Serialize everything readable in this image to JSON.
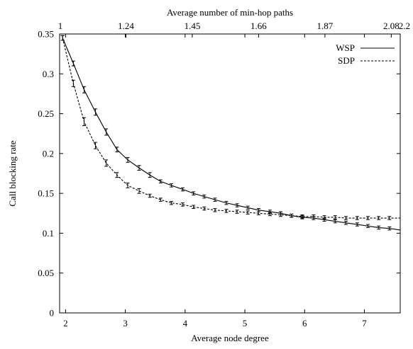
{
  "chart_data": {
    "type": "line",
    "title": "",
    "xlabel": "Average node degree",
    "ylabel": "Call blocking rate",
    "x2label": "Average number of min-hop paths",
    "xlim": [
      1.9,
      7.6
    ],
    "ylim": [
      0,
      0.35
    ],
    "xticks": [
      2,
      3,
      4,
      5,
      6,
      7
    ],
    "xtick_labels": [
      "2",
      "3",
      "4",
      "5",
      "6",
      "7"
    ],
    "yticks": [
      0,
      0.05,
      0.1,
      0.15,
      0.2,
      0.25,
      0.3,
      0.35
    ],
    "ytick_labels": [
      "0",
      "0.05",
      "0.1",
      "0.15",
      "0.2",
      "0.25",
      "0.3",
      "0.35"
    ],
    "x2ticks": [
      1.9,
      3.01,
      4.12,
      5.23,
      6.34,
      7.45,
      7.6
    ],
    "x2tick_labels": [
      "1",
      "1.24",
      "1.45",
      "1.66",
      "1.87",
      "2.08",
      "2.2"
    ],
    "grid": false,
    "legend_position": "top-right",
    "series": [
      {
        "name": "WSP",
        "style": "solid",
        "x": [
          1.95,
          2.13,
          2.31,
          2.5,
          2.68,
          2.86,
          3.04,
          3.23,
          3.41,
          3.59,
          3.77,
          3.96,
          4.14,
          4.32,
          4.5,
          4.69,
          4.87,
          5.05,
          5.23,
          5.42,
          5.6,
          5.78,
          5.96,
          6.15,
          6.33,
          6.51,
          6.69,
          6.88,
          7.06,
          7.24,
          7.42,
          7.6
        ],
        "y": [
          0.345,
          0.313,
          0.28,
          0.252,
          0.227,
          0.205,
          0.192,
          0.182,
          0.173,
          0.165,
          0.16,
          0.155,
          0.15,
          0.146,
          0.142,
          0.138,
          0.135,
          0.132,
          0.129,
          0.127,
          0.125,
          0.122,
          0.12,
          0.119,
          0.117,
          0.115,
          0.113,
          0.111,
          0.109,
          0.107,
          0.106,
          0.104
        ],
        "err": [
          0.003,
          0.003,
          0.004,
          0.004,
          0.004,
          0.003,
          0.003,
          0.003,
          0.003,
          0.002,
          0.002,
          0.002,
          0.002,
          0.002,
          0.002,
          0.002,
          0.002,
          0.002,
          0.002,
          0.002,
          0.002,
          0.002,
          0.002,
          0.002,
          0.002,
          0.002,
          0.002,
          0.002,
          0.002,
          0.002,
          0.002,
          0.0
        ]
      },
      {
        "name": "SDP",
        "style": "dashed",
        "x": [
          1.95,
          2.13,
          2.31,
          2.5,
          2.68,
          2.86,
          3.04,
          3.23,
          3.41,
          3.59,
          3.77,
          3.96,
          4.14,
          4.32,
          4.5,
          4.69,
          4.87,
          5.05,
          5.23,
          5.42,
          5.6,
          5.78,
          5.96,
          6.15,
          6.33,
          6.51,
          6.69,
          6.88,
          7.06,
          7.24,
          7.42,
          7.6
        ],
        "y": [
          0.345,
          0.288,
          0.24,
          0.21,
          0.188,
          0.173,
          0.16,
          0.153,
          0.147,
          0.142,
          0.138,
          0.136,
          0.133,
          0.131,
          0.129,
          0.128,
          0.127,
          0.126,
          0.125,
          0.124,
          0.123,
          0.122,
          0.121,
          0.121,
          0.12,
          0.12,
          0.119,
          0.119,
          0.119,
          0.119,
          0.119,
          0.119
        ],
        "err": [
          0.003,
          0.004,
          0.005,
          0.004,
          0.004,
          0.003,
          0.003,
          0.003,
          0.002,
          0.002,
          0.002,
          0.002,
          0.002,
          0.002,
          0.002,
          0.002,
          0.002,
          0.002,
          0.002,
          0.002,
          0.002,
          0.002,
          0.002,
          0.002,
          0.002,
          0.002,
          0.002,
          0.002,
          0.002,
          0.002,
          0.002,
          0.0
        ]
      }
    ]
  }
}
